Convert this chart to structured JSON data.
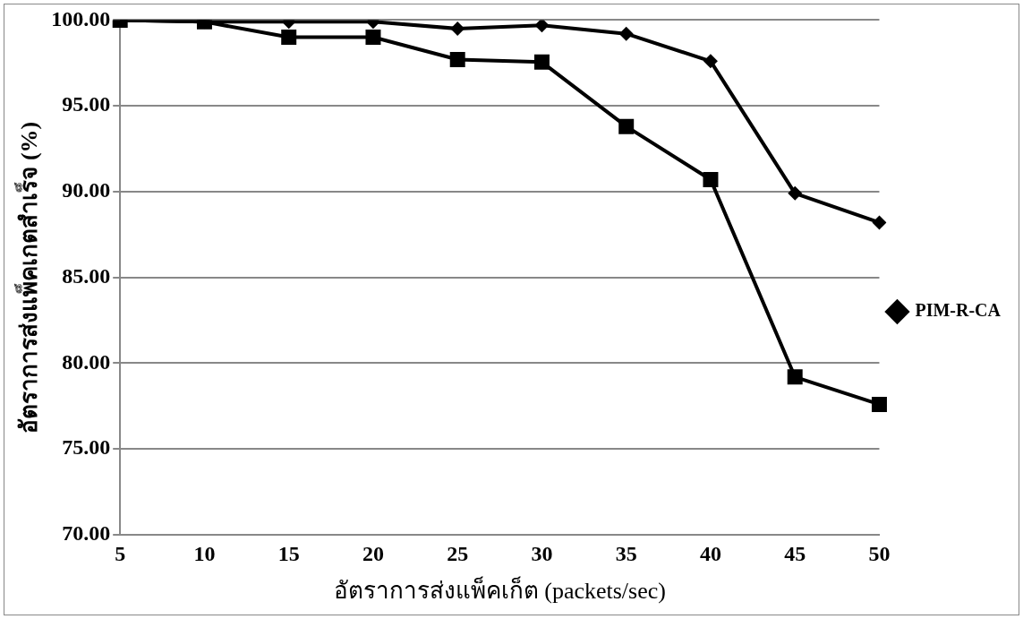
{
  "chart_data": {
    "type": "line",
    "xlabel": "อัตราการส่งแพ็คเก็ต (packets/sec)",
    "ylabel": "อัตราการส่งแพ็คเกตสำเร็จ (%)",
    "categories": [
      "5",
      "10",
      "15",
      "20",
      "25",
      "30",
      "35",
      "40",
      "45",
      "50"
    ],
    "series": [
      {
        "name": "PIM-R-CA",
        "color": "#000000",
        "marker": "diamond",
        "values": [
          100,
          99.9,
          99.9,
          99.9,
          99.5,
          99.7,
          99.2,
          97.6,
          89.9,
          88.2
        ]
      },
      {
        "color": "#000000",
        "marker": "square",
        "values": [
          100,
          99.9,
          99.0,
          99.0,
          97.7,
          97.55,
          93.8,
          90.7,
          79.2,
          77.6
        ]
      }
    ],
    "ylim": [
      70,
      100
    ],
    "yticks": [
      {
        "value": 70,
        "label": "70.00"
      },
      {
        "value": 75,
        "label": "75.00"
      },
      {
        "value": 80,
        "label": "80.00"
      },
      {
        "value": 85,
        "label": "85.00"
      },
      {
        "value": 90,
        "label": "90.00"
      },
      {
        "value": 95,
        "label": "95.00"
      },
      {
        "value": 100,
        "label": "100.00"
      }
    ],
    "grid": "y",
    "legend": "right",
    "line_style": "solid"
  }
}
